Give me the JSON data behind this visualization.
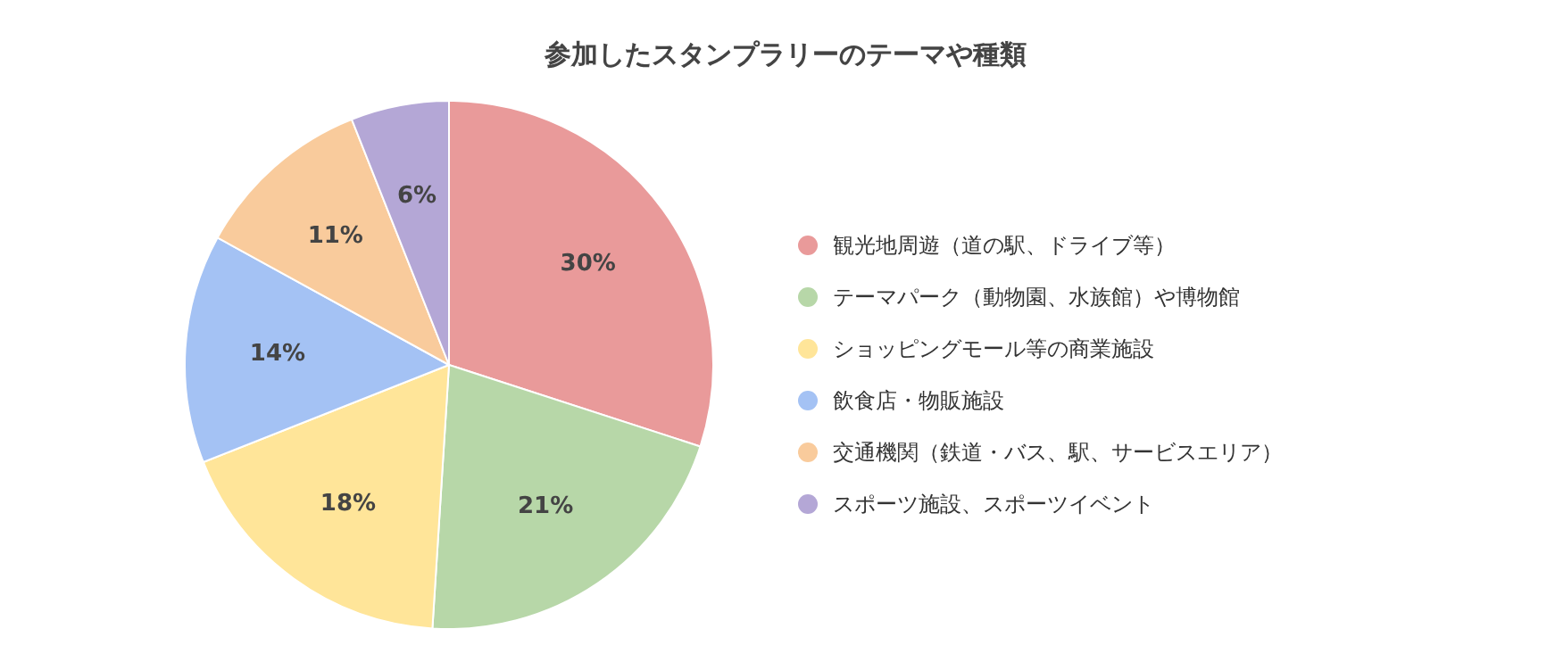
{
  "chart_data": {
    "type": "pie",
    "title": "参加したスタンプラリーのテーマや種類",
    "categories": [
      "観光地周遊（道の駅、ドライブ等）",
      "テーマパーク（動物園、水族館）や博物館",
      "ショッピングモール等の商業施設",
      "飲食店・物販施設",
      "交通機関（鉄道・バス、駅、サービスエリア）",
      "スポーツ施設、スポーツイベント"
    ],
    "values": [
      30,
      21,
      18,
      14,
      11,
      6
    ],
    "colors": [
      "#e99a9a",
      "#b7d7a8",
      "#ffe599",
      "#a4c2f4",
      "#f9cb9c",
      "#b4a7d6"
    ],
    "value_labels": [
      "30%",
      "21%",
      "18%",
      "14%",
      "11%",
      "6%"
    ],
    "legend": "right"
  }
}
